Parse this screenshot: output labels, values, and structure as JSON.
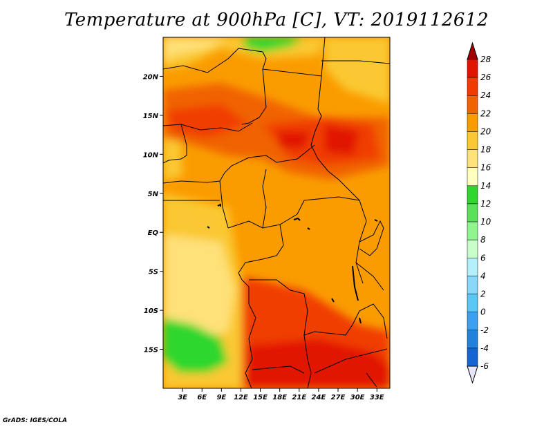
{
  "title": "Temperature at 900hPa [C], VT: 2019112612",
  "footer": "GrADS: IGES/COLA",
  "map": {
    "lon_range": [
      0,
      35
    ],
    "lat_range": [
      -20,
      25
    ],
    "lon_ticks": [
      {
        "value": 3,
        "label": "3E"
      },
      {
        "value": 6,
        "label": "6E"
      },
      {
        "value": 9,
        "label": "9E"
      },
      {
        "value": 12,
        "label": "12E"
      },
      {
        "value": 15,
        "label": "15E"
      },
      {
        "value": 18,
        "label": "18E"
      },
      {
        "value": 21,
        "label": "21E"
      },
      {
        "value": 24,
        "label": "24E"
      },
      {
        "value": 27,
        "label": "27E"
      },
      {
        "value": 30,
        "label": "30E"
      },
      {
        "value": 33,
        "label": "33E"
      }
    ],
    "lat_ticks": [
      {
        "value": 20,
        "label": "20N"
      },
      {
        "value": 15,
        "label": "15N"
      },
      {
        "value": 10,
        "label": "10N"
      },
      {
        "value": 5,
        "label": "5N"
      },
      {
        "value": 0,
        "label": "EQ"
      },
      {
        "value": -5,
        "label": "5S"
      },
      {
        "value": -10,
        "label": "10S"
      },
      {
        "value": -15,
        "label": "15S"
      }
    ]
  },
  "colorbar": {
    "labels": [
      "28",
      "26",
      "24",
      "22",
      "20",
      "18",
      "16",
      "14",
      "12",
      "10",
      "8",
      "6",
      "4",
      "2",
      "0",
      "-2",
      "-4",
      "-6"
    ],
    "colors": [
      "#a00000",
      "#e11400",
      "#f03c00",
      "#f06400",
      "#fa9c00",
      "#fac832",
      "#fee178",
      "#ffffbe",
      "#2ed72e",
      "#5ae15a",
      "#8ff58f",
      "#c8ffc8",
      "#b4f0fa",
      "#87d7f9",
      "#5ac8f5",
      "#3ca0f0",
      "#2182dc",
      "#1464d2",
      "#0a37b4",
      "#1e1e8c",
      "#0a0a50"
    ],
    "top_color": "#a00000",
    "bottom_color": "#e6e6fa"
  }
}
